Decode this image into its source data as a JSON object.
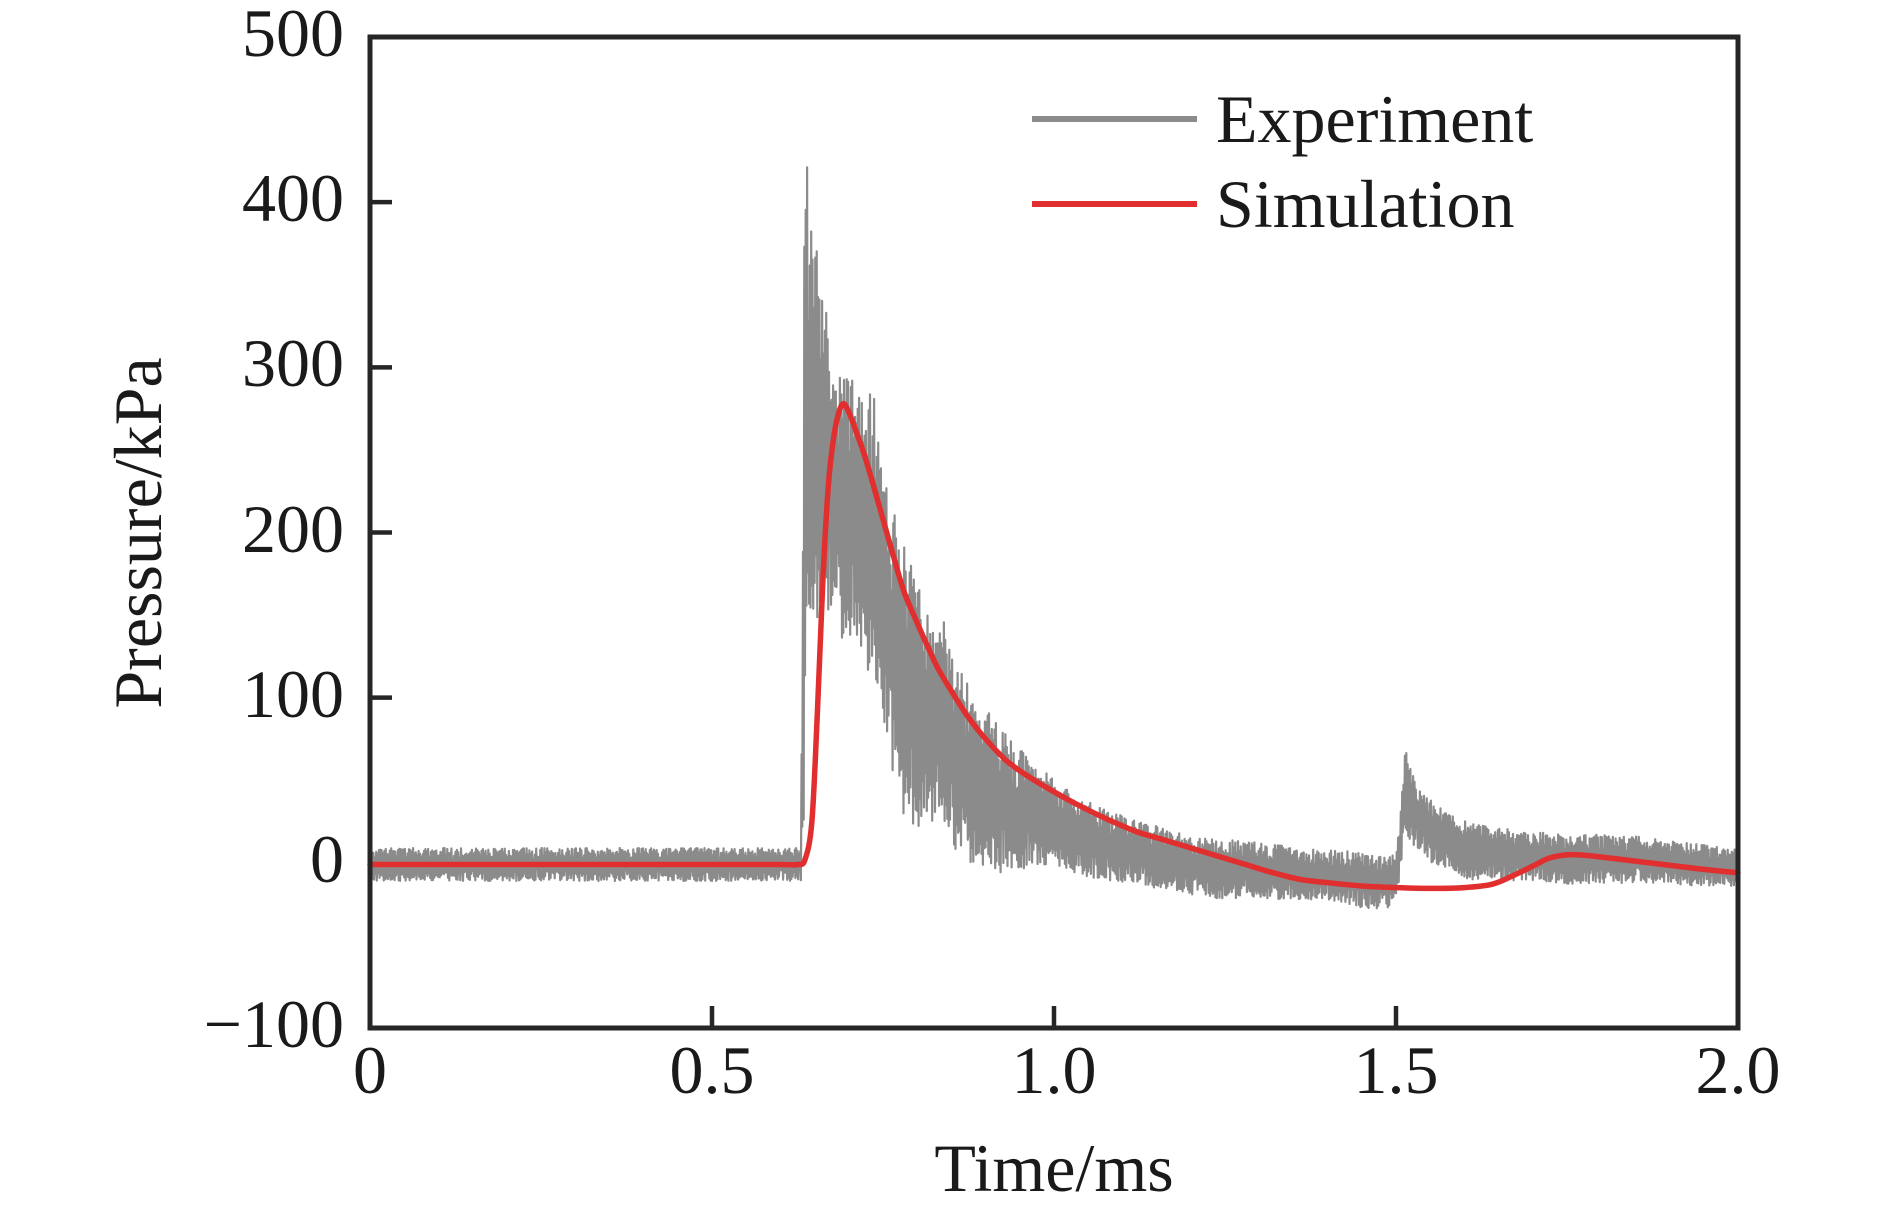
{
  "figure": {
    "background": "#ffffff",
    "axis_color": "#262626",
    "text_color": "#1a1a1a"
  },
  "chart_data": {
    "type": "line",
    "title": "",
    "xlabel": "Time/ms",
    "ylabel": "Pressure/kPa",
    "xlim": [
      0,
      2.0
    ],
    "ylim": [
      -100,
      500
    ],
    "grid": false,
    "x_ticks": [
      0,
      0.5,
      1.0,
      1.5,
      2.0
    ],
    "x_tick_labels": [
      "0",
      "0.5",
      "1.0",
      "1.5",
      "2.0"
    ],
    "y_ticks": [
      -100,
      0,
      100,
      200,
      300,
      400,
      500
    ],
    "y_tick_labels": [
      "−100",
      "0",
      "100",
      "200",
      "300",
      "400",
      "500"
    ],
    "axis_color": "#262626",
    "legend": {
      "position": "upper right",
      "entries": [
        {
          "label": "Experiment",
          "color": "#8b8b8b"
        },
        {
          "label": "Simulation",
          "color": "#e12e2e"
        }
      ]
    },
    "series": [
      {
        "name": "Experiment",
        "color": "#8b8b8b",
        "style": "noisy",
        "envelope_format": [
          "time_ms",
          "upper_kpa",
          "lower_kpa"
        ],
        "envelope": [
          [
            0.0,
            9,
            -11
          ],
          [
            0.3,
            9,
            -11
          ],
          [
            0.6,
            9,
            -11
          ],
          [
            0.63,
            9,
            -11
          ],
          [
            0.633,
            200,
            -5
          ],
          [
            0.6355,
            430,
            60
          ],
          [
            0.641,
            418,
            140
          ],
          [
            0.647,
            385,
            150
          ],
          [
            0.654,
            372,
            148
          ],
          [
            0.662,
            345,
            140
          ],
          [
            0.67,
            336,
            148
          ],
          [
            0.678,
            306,
            148
          ],
          [
            0.688,
            302,
            136
          ],
          [
            0.7,
            300,
            132
          ],
          [
            0.712,
            296,
            136
          ],
          [
            0.724,
            292,
            120
          ],
          [
            0.736,
            288,
            110
          ],
          [
            0.748,
            240,
            92
          ],
          [
            0.76,
            220,
            60
          ],
          [
            0.772,
            205,
            38
          ],
          [
            0.784,
            190,
            25
          ],
          [
            0.796,
            175,
            22
          ],
          [
            0.81,
            160,
            20
          ],
          [
            0.825,
            145,
            22
          ],
          [
            0.84,
            152,
            18
          ],
          [
            0.855,
            120,
            8
          ],
          [
            0.87,
            112,
            2
          ],
          [
            0.885,
            104,
            -2
          ],
          [
            0.9,
            96,
            -4
          ],
          [
            0.92,
            83,
            -6
          ],
          [
            0.94,
            73,
            -6
          ],
          [
            0.96,
            65,
            -4
          ],
          [
            0.98,
            57,
            -2
          ],
          [
            1.0,
            52,
            -1
          ],
          [
            1.02,
            45,
            -5
          ],
          [
            1.04,
            39,
            -8
          ],
          [
            1.06,
            35,
            -10
          ],
          [
            1.08,
            32,
            -11
          ],
          [
            1.1,
            29,
            -12
          ],
          [
            1.13,
            25,
            -14
          ],
          [
            1.16,
            21,
            -16
          ],
          [
            1.19,
            17,
            -19
          ],
          [
            1.22,
            15,
            -21
          ],
          [
            1.25,
            14,
            -22
          ],
          [
            1.28,
            13,
            -22
          ],
          [
            1.31,
            12,
            -23
          ],
          [
            1.34,
            10,
            -22
          ],
          [
            1.37,
            9,
            -22
          ],
          [
            1.4,
            8,
            -23
          ],
          [
            1.43,
            7,
            -25
          ],
          [
            1.46,
            5,
            -28
          ],
          [
            1.49,
            4,
            -27
          ],
          [
            1.502,
            10,
            -18
          ],
          [
            1.508,
            45,
            -5
          ],
          [
            1.513,
            71,
            15
          ],
          [
            1.52,
            58,
            12
          ],
          [
            1.531,
            47,
            8
          ],
          [
            1.545,
            41,
            3
          ],
          [
            1.56,
            35,
            -3
          ],
          [
            1.58,
            29,
            -8
          ],
          [
            1.61,
            24,
            -10
          ],
          [
            1.65,
            21,
            -11
          ],
          [
            1.7,
            19,
            -12
          ],
          [
            1.75,
            17,
            -13
          ],
          [
            1.8,
            17,
            -13
          ],
          [
            1.85,
            16,
            -12
          ],
          [
            1.9,
            14,
            -13
          ],
          [
            1.95,
            11,
            -14
          ],
          [
            2.0,
            8,
            -14
          ]
        ]
      },
      {
        "name": "Simulation",
        "color": "#e12e2e",
        "style": "smooth",
        "points_format": [
          "time_ms",
          "pressure_kpa"
        ],
        "points": [
          [
            0.0,
            -1
          ],
          [
            0.3,
            -1
          ],
          [
            0.5,
            -1
          ],
          [
            0.6,
            -1
          ],
          [
            0.625,
            -1
          ],
          [
            0.636,
            2
          ],
          [
            0.646,
            25
          ],
          [
            0.654,
            90
          ],
          [
            0.662,
            170
          ],
          [
            0.67,
            228
          ],
          [
            0.678,
            258
          ],
          [
            0.685,
            272
          ],
          [
            0.692,
            278
          ],
          [
            0.7,
            273
          ],
          [
            0.71,
            262
          ],
          [
            0.722,
            248
          ],
          [
            0.735,
            230
          ],
          [
            0.75,
            208
          ],
          [
            0.765,
            186
          ],
          [
            0.78,
            165
          ],
          [
            0.795,
            150
          ],
          [
            0.812,
            134
          ],
          [
            0.83,
            118
          ],
          [
            0.85,
            104
          ],
          [
            0.875,
            88
          ],
          [
            0.9,
            75
          ],
          [
            0.93,
            62
          ],
          [
            0.96,
            53
          ],
          [
            1.0,
            43
          ],
          [
            1.04,
            34
          ],
          [
            1.08,
            26
          ],
          [
            1.12,
            19
          ],
          [
            1.16,
            14
          ],
          [
            1.2,
            9
          ],
          [
            1.24,
            4
          ],
          [
            1.28,
            -1
          ],
          [
            1.32,
            -6
          ],
          [
            1.36,
            -10
          ],
          [
            1.4,
            -12
          ],
          [
            1.45,
            -14
          ],
          [
            1.5,
            -15
          ],
          [
            1.55,
            -15.5
          ],
          [
            1.6,
            -15
          ],
          [
            1.64,
            -13
          ],
          [
            1.67,
            -8
          ],
          [
            1.7,
            -2
          ],
          [
            1.725,
            3
          ],
          [
            1.755,
            5
          ],
          [
            1.79,
            4
          ],
          [
            1.83,
            2
          ],
          [
            1.87,
            0
          ],
          [
            1.91,
            -2
          ],
          [
            1.95,
            -4
          ],
          [
            2.0,
            -6
          ]
        ]
      }
    ]
  }
}
